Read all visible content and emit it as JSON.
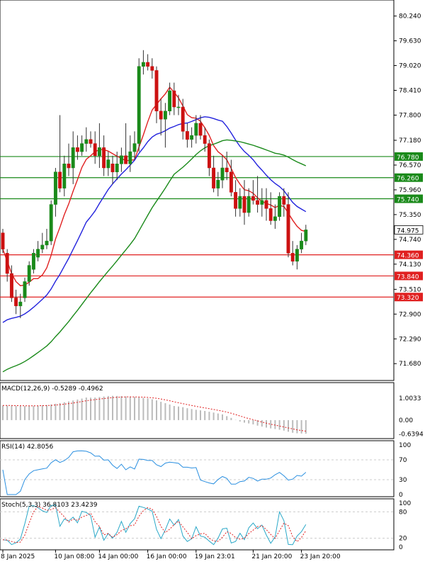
{
  "chart_data": {
    "type": "candlestick",
    "price_axis": {
      "ticks": [
        "80.240",
        "79.630",
        "79.020",
        "78.410",
        "77.800",
        "77.180",
        "76.570",
        "75.960",
        "75.350",
        "74.740",
        "74.130",
        "73.510",
        "72.900",
        "72.290",
        "71.680"
      ],
      "ylim": [
        71.3,
        80.6
      ]
    },
    "last_price": "74.975",
    "levels": [
      {
        "label": "76.780",
        "value": 76.78,
        "color": "#1a8a1a"
      },
      {
        "label": "76.260",
        "value": 76.26,
        "color": "#1a8a1a"
      },
      {
        "label": "75.740",
        "value": 75.74,
        "color": "#1a8a1a"
      },
      {
        "label": "74.360",
        "value": 74.36,
        "color": "#e02020"
      },
      {
        "label": "73.840",
        "value": 73.84,
        "color": "#e02020"
      },
      {
        "label": "73.320",
        "value": 73.32,
        "color": "#e02020"
      }
    ],
    "candles": [
      [
        74.9,
        75.0,
        74.4,
        74.5
      ],
      [
        74.4,
        74.5,
        73.7,
        73.9
      ],
      [
        73.9,
        74.1,
        73.2,
        73.3
      ],
      [
        73.3,
        73.5,
        72.9,
        73.1
      ],
      [
        73.1,
        73.4,
        72.8,
        73.2
      ],
      [
        73.3,
        73.8,
        73.2,
        73.7
      ],
      [
        73.7,
        74.2,
        73.6,
        74.1
      ],
      [
        74.0,
        74.5,
        73.9,
        74.4
      ],
      [
        74.3,
        74.7,
        74.2,
        74.5
      ],
      [
        74.5,
        74.9,
        74.4,
        74.6
      ],
      [
        74.6,
        75.0,
        74.5,
        74.7
      ],
      [
        74.7,
        75.7,
        74.6,
        75.6
      ],
      [
        75.6,
        76.5,
        75.3,
        76.4
      ],
      [
        76.4,
        77.8,
        75.9,
        76.0
      ],
      [
        76.0,
        76.8,
        75.8,
        76.6
      ],
      [
        76.6,
        77.1,
        76.3,
        76.5
      ],
      [
        76.5,
        77.4,
        76.1,
        77.0
      ],
      [
        77.0,
        77.3,
        76.7,
        76.9
      ],
      [
        76.9,
        77.3,
        76.8,
        77.1
      ],
      [
        77.1,
        77.5,
        76.9,
        77.2
      ],
      [
        77.2,
        77.4,
        77.0,
        77.1
      ],
      [
        77.1,
        77.4,
        76.6,
        76.8
      ],
      [
        76.8,
        77.6,
        76.5,
        77.0
      ],
      [
        77.0,
        77.3,
        76.3,
        76.5
      ],
      [
        76.5,
        76.9,
        76.3,
        76.7
      ],
      [
        76.6,
        76.8,
        76.1,
        76.4
      ],
      [
        76.4,
        76.9,
        76.2,
        76.6
      ],
      [
        76.6,
        77.0,
        76.4,
        76.8
      ],
      [
        76.8,
        77.6,
        76.6,
        76.6
      ],
      [
        76.6,
        77.3,
        76.4,
        76.9
      ],
      [
        76.9,
        77.4,
        76.7,
        77.1
      ],
      [
        77.1,
        79.2,
        76.9,
        79.0
      ],
      [
        79.0,
        79.4,
        78.8,
        79.1
      ],
      [
        79.1,
        79.3,
        78.9,
        79.0
      ],
      [
        79.0,
        79.2,
        78.7,
        78.9
      ],
      [
        78.9,
        79.0,
        77.6,
        77.9
      ],
      [
        77.9,
        78.2,
        77.3,
        77.7
      ],
      [
        77.7,
        78.1,
        77.0,
        77.9
      ],
      [
        77.9,
        78.6,
        77.8,
        78.4
      ],
      [
        78.4,
        78.6,
        77.8,
        78.0
      ],
      [
        78.0,
        78.3,
        77.8,
        78.0
      ],
      [
        78.0,
        78.2,
        77.2,
        77.4
      ],
      [
        77.4,
        77.6,
        77.0,
        77.2
      ],
      [
        77.2,
        77.5,
        77.0,
        77.3
      ],
      [
        77.3,
        77.8,
        77.1,
        77.6
      ],
      [
        77.6,
        77.8,
        77.2,
        77.3
      ],
      [
        77.3,
        77.5,
        76.9,
        77.1
      ],
      [
        77.1,
        77.2,
        76.3,
        76.5
      ],
      [
        76.5,
        76.8,
        75.9,
        76.0
      ],
      [
        76.0,
        76.4,
        75.8,
        76.2
      ],
      [
        76.2,
        76.8,
        76.0,
        76.5
      ],
      [
        76.5,
        76.9,
        76.2,
        76.4
      ],
      [
        76.4,
        76.7,
        75.8,
        75.9
      ],
      [
        75.9,
        76.2,
        75.3,
        75.5
      ],
      [
        75.5,
        76.0,
        75.3,
        75.8
      ],
      [
        75.8,
        76.2,
        75.1,
        75.4
      ],
      [
        75.4,
        76.0,
        75.3,
        75.8
      ],
      [
        75.8,
        76.2,
        75.6,
        75.7
      ],
      [
        75.7,
        76.3,
        75.4,
        75.6
      ],
      [
        75.6,
        76.0,
        75.3,
        75.7
      ],
      [
        75.7,
        76.0,
        75.2,
        75.5
      ],
      [
        75.5,
        75.9,
        75.1,
        75.2
      ],
      [
        75.2,
        75.6,
        75.0,
        75.3
      ],
      [
        75.3,
        75.9,
        75.2,
        75.8
      ],
      [
        75.8,
        76.0,
        75.3,
        75.6
      ],
      [
        75.6,
        75.9,
        74.3,
        74.4
      ],
      [
        74.4,
        74.7,
        74.1,
        74.2
      ],
      [
        74.2,
        74.6,
        74.0,
        74.5
      ],
      [
        74.5,
        74.9,
        74.4,
        74.7
      ],
      [
        74.7,
        75.1,
        74.6,
        74.975
      ]
    ],
    "indicators": {
      "ma_fast_color": "#e02020",
      "ma_mid_color": "#2222dd",
      "ma_slow_color": "#1a8a1a"
    },
    "macd": {
      "label": "MACD(12,26,9) -0.5289 -0.4962",
      "ticks": [
        "1.0033",
        "0.00",
        "-0.6394"
      ],
      "ylim": [
        -0.75,
        1.2
      ]
    },
    "rsi": {
      "label": "RSI(14) 42.8056",
      "ticks": [
        "100",
        "70",
        "30",
        "0"
      ],
      "ylim": [
        0,
        100
      ]
    },
    "stoch": {
      "label": "Stoch(5,3,3) 36.8103 23.4239",
      "ticks": [
        "100",
        "80",
        "20",
        "0"
      ],
      "ylim": [
        0,
        100
      ]
    },
    "time_labels": [
      {
        "text": "8 Jan 2025",
        "index": 0
      },
      {
        "text": "10 Jan 08:00",
        "index": 12
      },
      {
        "text": "14 Jan 00:00",
        "index": 22
      },
      {
        "text": "16 Jan 00:00",
        "index": 33
      },
      {
        "text": "19 Jan 23:01",
        "index": 44
      },
      {
        "text": "21 Jan 20:00",
        "index": 57
      },
      {
        "text": "23 Jan 20:00",
        "index": 68
      }
    ]
  }
}
